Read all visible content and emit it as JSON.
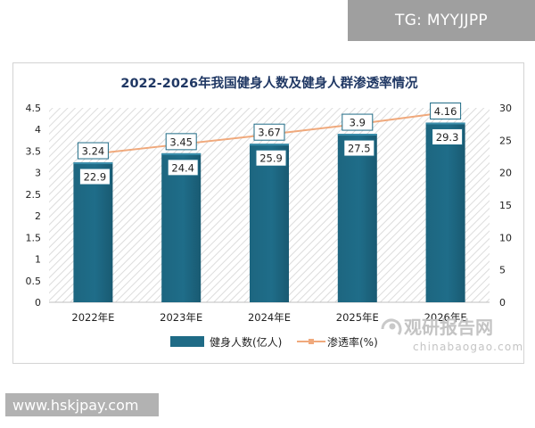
{
  "top_badge": "TG: MYYJJPP",
  "bottom_badge": "www.hskjpay.com",
  "watermark": {
    "name": "观研报告网",
    "url": "chinabaogao.com"
  },
  "colors": {
    "bar": "#1f6b86",
    "bar_top": "#3b8eab",
    "line": "#f0a97c",
    "title": "#203864",
    "hatch": "#d9d9d9"
  },
  "chart_data": {
    "type": "bar",
    "title": "2022-2026年我国健身人数及健身人群渗透率情况",
    "categories": [
      "2022年E",
      "2023年E",
      "2024年E",
      "2025年E",
      "2026年E"
    ],
    "y_left": {
      "min": 0,
      "max": 4.5,
      "ticks": [
        "0",
        "0.5",
        "1",
        "1.5",
        "2",
        "2.5",
        "3",
        "3.5",
        "4",
        "4.5"
      ]
    },
    "y_right": {
      "min": 0,
      "max": 30,
      "ticks": [
        "0",
        "5",
        "10",
        "15",
        "20",
        "25",
        "30"
      ]
    },
    "series": [
      {
        "name": "健身人数(亿人)",
        "type": "bar",
        "axis": "left",
        "values": [
          3.24,
          3.45,
          3.67,
          3.9,
          4.16
        ]
      },
      {
        "name": "渗透率(%)",
        "type": "line",
        "axis": "right",
        "values": [
          22.9,
          24.4,
          25.9,
          27.5,
          29.3
        ]
      }
    ],
    "legend": "bottom"
  }
}
